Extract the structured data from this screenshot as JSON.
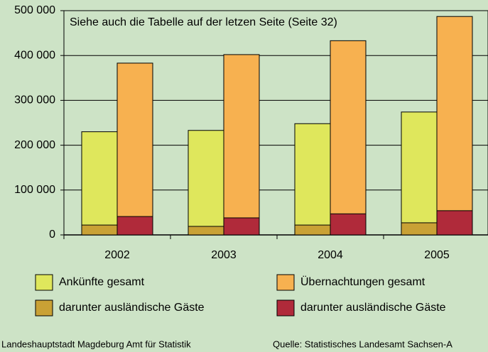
{
  "chart_data": {
    "type": "bar",
    "annotation": "Siehe auch die Tabelle auf der letzen Seite (Seite 32)",
    "categories": [
      "2002",
      "2003",
      "2004",
      "2005"
    ],
    "series": [
      {
        "name": "Ankünfte gesamt",
        "color": "#dfe75c",
        "values": [
          230000,
          233000,
          248000,
          274000
        ]
      },
      {
        "name": "darunter ausländische Gäste",
        "color": "#c9a135",
        "values": [
          22000,
          19000,
          22000,
          27000
        ]
      },
      {
        "name": "Übernachtungen gesamt",
        "color": "#f7b150",
        "values": [
          383000,
          402000,
          433000,
          487000
        ]
      },
      {
        "name": "darunter ausländische Gäste",
        "color": "#b02a3a",
        "values": [
          41000,
          38000,
          47000,
          54000
        ]
      }
    ],
    "ylim": [
      0,
      500000
    ],
    "yticks": [
      0,
      {
        "value": 100000,
        "label": "100 000"
      },
      {
        "value": 200000,
        "label": "200 000"
      },
      {
        "value": 300000,
        "label": "300 000"
      },
      {
        "value": 400000,
        "label": "400 000"
      },
      {
        "value": 500000,
        "label": "500 000"
      }
    ],
    "grid": true,
    "footer_left": "Landeshauptstadt Magdeburg  Amt für Statistik",
    "footer_right": "Quelle: Statistisches Landesamt Sachsen-A"
  }
}
